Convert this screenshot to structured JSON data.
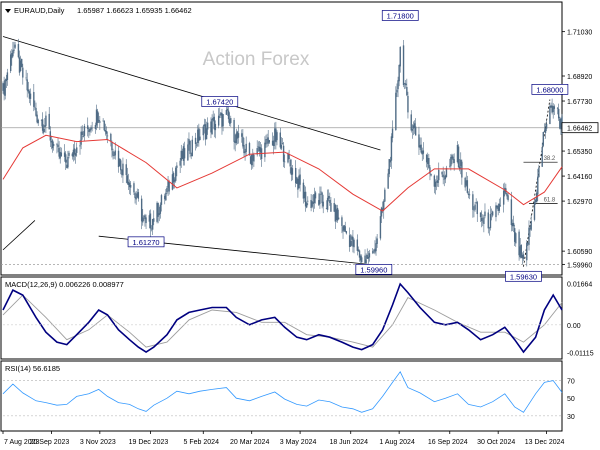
{
  "header": {
    "symbol": "EURAUD,Daily",
    "ohlc": "1.65987 1.66623 1.65935 1.66462"
  },
  "watermark": "Action Forex",
  "colors": {
    "candle": "#4f6b85",
    "ma": "#e53935",
    "macd_line": "#000080",
    "macd_signal": "#9e9e9e",
    "rsi_line": "#3399ff",
    "trendline": "#000000",
    "fib": "#000000"
  },
  "chart_data": [
    {
      "type": "candlestick",
      "pane": "price",
      "ylim": [
        1.5955,
        1.7225
      ],
      "y_ticks": [
        "1.71030",
        "1.68920",
        "1.67730",
        "1.65350",
        "1.64160",
        "1.62970",
        "1.60590",
        "1.59960"
      ],
      "current_price_label": "1.66462",
      "x_range": [
        "2023-08-07",
        "2024-12-27"
      ],
      "x_ticks": [
        "7 Aug 2023",
        "20 Sep 2023",
        "3 Nov 2023",
        "19 Dec 2023",
        "5 Feb 2024",
        "20 Mar 2024",
        "3 May 2024",
        "18 Jun 2024",
        "1 Aug 2024",
        "16 Sep 2024",
        "30 Oct 2024",
        "13 Dec 2024"
      ],
      "close_path": [
        [
          "2023-08-07",
          1.682
        ],
        [
          "2023-08-16",
          1.703
        ],
        [
          "2023-08-25",
          1.689
        ],
        [
          "2023-09-06",
          1.671
        ],
        [
          "2023-09-15",
          1.666
        ],
        [
          "2023-09-25",
          1.652
        ],
        [
          "2023-10-04",
          1.648
        ],
        [
          "2023-10-13",
          1.657
        ],
        [
          "2023-10-24",
          1.665
        ],
        [
          "2023-11-02",
          1.672
        ],
        [
          "2023-11-10",
          1.662
        ],
        [
          "2023-11-20",
          1.649
        ],
        [
          "2023-11-30",
          1.64
        ],
        [
          "2023-12-08",
          1.628
        ],
        [
          "2023-12-15",
          1.617
        ],
        [
          "2023-12-22",
          1.622
        ],
        [
          "2024-01-03",
          1.634
        ],
        [
          "2024-01-12",
          1.647
        ],
        [
          "2024-01-23",
          1.655
        ],
        [
          "2024-02-02",
          1.661
        ],
        [
          "2024-02-13",
          1.666
        ],
        [
          "2024-02-26",
          1.67
        ],
        [
          "2024-03-06",
          1.66
        ],
        [
          "2024-03-18",
          1.651
        ],
        [
          "2024-03-29",
          1.654
        ],
        [
          "2024-04-10",
          1.66
        ],
        [
          "2024-04-19",
          1.652
        ],
        [
          "2024-04-30",
          1.64
        ],
        [
          "2024-05-09",
          1.629
        ],
        [
          "2024-05-20",
          1.63
        ],
        [
          "2024-05-30",
          1.628
        ],
        [
          "2024-06-10",
          1.618
        ],
        [
          "2024-06-20",
          1.609
        ],
        [
          "2024-06-28",
          1.602
        ],
        [
          "2024-07-08",
          1.604
        ],
        [
          "2024-07-17",
          1.625
        ],
        [
          "2024-07-26",
          1.66
        ],
        [
          "2024-08-02",
          1.702
        ],
        [
          "2024-08-09",
          1.672
        ],
        [
          "2024-08-20",
          1.656
        ],
        [
          "2024-09-02",
          1.64
        ],
        [
          "2024-09-12",
          1.643
        ],
        [
          "2024-09-23",
          1.652
        ],
        [
          "2024-10-03",
          1.632
        ],
        [
          "2024-10-14",
          1.621
        ],
        [
          "2024-10-25",
          1.62
        ],
        [
          "2024-11-05",
          1.634
        ],
        [
          "2024-11-14",
          1.612
        ],
        [
          "2024-11-22",
          1.599
        ],
        [
          "2024-12-03",
          1.632
        ],
        [
          "2024-12-11",
          1.664
        ],
        [
          "2024-12-19",
          1.676
        ],
        [
          "2024-12-27",
          1.665
        ]
      ],
      "ma_path": [
        [
          "2023-08-07",
          1.64
        ],
        [
          "2023-08-25",
          1.655
        ],
        [
          "2023-09-15",
          1.661
        ],
        [
          "2023-10-13",
          1.658
        ],
        [
          "2023-11-10",
          1.659
        ],
        [
          "2023-12-15",
          1.648
        ],
        [
          "2024-01-12",
          1.636
        ],
        [
          "2024-02-13",
          1.643
        ],
        [
          "2024-03-18",
          1.652
        ],
        [
          "2024-04-19",
          1.653
        ],
        [
          "2024-05-20",
          1.645
        ],
        [
          "2024-06-20",
          1.633
        ],
        [
          "2024-07-17",
          1.625
        ],
        [
          "2024-08-09",
          1.636
        ],
        [
          "2024-09-02",
          1.645
        ],
        [
          "2024-10-03",
          1.645
        ],
        [
          "2024-11-05",
          1.635
        ],
        [
          "2024-11-22",
          1.628
        ],
        [
          "2024-12-11",
          1.634
        ],
        [
          "2024-12-27",
          1.646
        ]
      ],
      "trendlines": [
        {
          "from": [
            "2023-08-07",
            1.708
          ],
          "to": [
            "2024-07-15",
            1.654
          ]
        },
        {
          "from": [
            "2023-11-02",
            1.613
          ],
          "to": [
            "2024-07-15",
            1.599
          ]
        },
        {
          "from": [
            "2023-08-07",
            1.6065
          ],
          "to": [
            "2023-09-05",
            1.6205
          ]
        },
        {
          "from": [
            "2024-11-22",
            1.5985
          ],
          "to": [
            "2024-12-16",
            1.678
          ]
        }
      ],
      "horizontal_lines": [
        {
          "y": 1.6646,
          "style": "solid"
        },
        {
          "y": 1.5996,
          "style": "dashed"
        }
      ],
      "fib_levels": [
        {
          "label": "38.2",
          "y": 1.6482,
          "from": "2024-11-22",
          "to": "2024-12-23"
        },
        {
          "label": "61.8",
          "y": 1.6285,
          "from": "2024-11-27",
          "to": "2024-12-23"
        }
      ],
      "annotations": [
        {
          "text": "1.71800",
          "x": "2024-08-02",
          "y": 1.718
        },
        {
          "text": "1.67420",
          "x": "2024-02-20",
          "y": 1.6742
        },
        {
          "text": "1.61270",
          "x": "2023-12-15",
          "y": 1.6127
        },
        {
          "text": "1.59960",
          "x": "2024-07-09",
          "y": 1.5996
        },
        {
          "text": "1.59630",
          "x": "2024-11-22",
          "y": 1.5963
        },
        {
          "text": "1.68000",
          "x": "2024-12-16",
          "y": 1.68
        }
      ]
    },
    {
      "type": "line",
      "pane": "macd",
      "title": "MACD(12,26,9) 0.006226 0.008977",
      "ylim": [
        -0.013,
        0.0185
      ],
      "y_ticks": [
        "0.01664",
        "0.00",
        "-0.01115"
      ],
      "series": [
        {
          "name": "MACD",
          "values": [
            [
              "2023-08-07",
              0.006
            ],
            [
              "2023-08-16",
              0.014
            ],
            [
              "2023-08-25",
              0.012
            ],
            [
              "2023-09-06",
              0.003
            ],
            [
              "2023-09-15",
              -0.003
            ],
            [
              "2023-09-25",
              -0.007
            ],
            [
              "2023-10-04",
              -0.008
            ],
            [
              "2023-10-13",
              -0.004
            ],
            [
              "2023-10-24",
              0.001
            ],
            [
              "2023-11-02",
              0.006
            ],
            [
              "2023-11-10",
              0.004
            ],
            [
              "2023-11-20",
              -0.002
            ],
            [
              "2023-11-30",
              -0.006
            ],
            [
              "2023-12-08",
              -0.009
            ],
            [
              "2023-12-15",
              -0.011
            ],
            [
              "2023-12-22",
              -0.009
            ],
            [
              "2024-01-03",
              -0.004
            ],
            [
              "2024-01-12",
              0.002
            ],
            [
              "2024-01-23",
              0.005
            ],
            [
              "2024-02-02",
              0.006
            ],
            [
              "2024-02-13",
              0.007
            ],
            [
              "2024-02-26",
              0.007
            ],
            [
              "2024-03-06",
              0.003
            ],
            [
              "2024-03-18",
              0.0
            ],
            [
              "2024-03-29",
              0.002
            ],
            [
              "2024-04-10",
              0.003
            ],
            [
              "2024-04-19",
              -0.001
            ],
            [
              "2024-04-30",
              -0.005
            ],
            [
              "2024-05-09",
              -0.006
            ],
            [
              "2024-05-20",
              -0.004
            ],
            [
              "2024-05-30",
              -0.005
            ],
            [
              "2024-06-10",
              -0.007
            ],
            [
              "2024-06-20",
              -0.009
            ],
            [
              "2024-06-28",
              -0.01
            ],
            [
              "2024-07-08",
              -0.008
            ],
            [
              "2024-07-17",
              -0.002
            ],
            [
              "2024-07-26",
              0.008
            ],
            [
              "2024-08-02",
              0.0165
            ],
            [
              "2024-08-09",
              0.013
            ],
            [
              "2024-08-20",
              0.007
            ],
            [
              "2024-09-02",
              0.001
            ],
            [
              "2024-09-12",
              0.0
            ],
            [
              "2024-09-23",
              0.001
            ],
            [
              "2024-10-03",
              -0.002
            ],
            [
              "2024-10-14",
              -0.006
            ],
            [
              "2024-10-25",
              -0.004
            ],
            [
              "2024-11-05",
              -0.001
            ],
            [
              "2024-11-14",
              -0.006
            ],
            [
              "2024-11-22",
              -0.011
            ],
            [
              "2024-12-03",
              -0.005
            ],
            [
              "2024-12-11",
              0.006
            ],
            [
              "2024-12-19",
              0.012
            ],
            [
              "2024-12-27",
              0.006
            ]
          ]
        },
        {
          "name": "Signal",
          "values": [
            [
              "2023-08-07",
              0.004
            ],
            [
              "2023-08-25",
              0.012
            ],
            [
              "2023-09-15",
              0.003
            ],
            [
              "2023-10-04",
              -0.006
            ],
            [
              "2023-10-24",
              -0.002
            ],
            [
              "2023-11-10",
              0.004
            ],
            [
              "2023-11-30",
              -0.003
            ],
            [
              "2023-12-15",
              -0.009
            ],
            [
              "2024-01-03",
              -0.007
            ],
            [
              "2024-01-23",
              0.002
            ],
            [
              "2024-02-13",
              0.006
            ],
            [
              "2024-03-06",
              0.005
            ],
            [
              "2024-03-29",
              0.001
            ],
            [
              "2024-04-19",
              0.001
            ],
            [
              "2024-05-09",
              -0.004
            ],
            [
              "2024-05-30",
              -0.005
            ],
            [
              "2024-06-20",
              -0.007
            ],
            [
              "2024-07-08",
              -0.009
            ],
            [
              "2024-07-26",
              0.0
            ],
            [
              "2024-08-09",
              0.011
            ],
            [
              "2024-09-02",
              0.006
            ],
            [
              "2024-09-23",
              0.001
            ],
            [
              "2024-10-14",
              -0.003
            ],
            [
              "2024-11-05",
              -0.003
            ],
            [
              "2024-11-22",
              -0.007
            ],
            [
              "2024-12-11",
              0.0
            ],
            [
              "2024-12-27",
              0.009
            ]
          ]
        }
      ]
    },
    {
      "type": "line",
      "pane": "rsi",
      "title": "RSI(14) 56.6185",
      "ylim": [
        15,
        90
      ],
      "y_ticks": [
        "70",
        "50",
        "30"
      ],
      "series": [
        {
          "name": "RSI",
          "values": [
            [
              "2023-08-07",
              55
            ],
            [
              "2023-08-16",
              66
            ],
            [
              "2023-08-25",
              56
            ],
            [
              "2023-09-06",
              47
            ],
            [
              "2023-09-15",
              45
            ],
            [
              "2023-09-25",
              42
            ],
            [
              "2023-10-04",
              43
            ],
            [
              "2023-10-13",
              52
            ],
            [
              "2023-10-24",
              55
            ],
            [
              "2023-11-02",
              60
            ],
            [
              "2023-11-10",
              52
            ],
            [
              "2023-11-20",
              45
            ],
            [
              "2023-11-30",
              43
            ],
            [
              "2023-12-08",
              38
            ],
            [
              "2023-12-15",
              35
            ],
            [
              "2023-12-22",
              42
            ],
            [
              "2024-01-03",
              50
            ],
            [
              "2024-01-12",
              58
            ],
            [
              "2024-01-23",
              55
            ],
            [
              "2024-02-02",
              58
            ],
            [
              "2024-02-13",
              60
            ],
            [
              "2024-02-26",
              62
            ],
            [
              "2024-03-06",
              50
            ],
            [
              "2024-03-18",
              47
            ],
            [
              "2024-03-29",
              52
            ],
            [
              "2024-04-10",
              57
            ],
            [
              "2024-04-19",
              49
            ],
            [
              "2024-04-30",
              43
            ],
            [
              "2024-05-09",
              41
            ],
            [
              "2024-05-20",
              48
            ],
            [
              "2024-05-30",
              46
            ],
            [
              "2024-06-10",
              40
            ],
            [
              "2024-06-20",
              38
            ],
            [
              "2024-06-28",
              34
            ],
            [
              "2024-07-08",
              38
            ],
            [
              "2024-07-17",
              52
            ],
            [
              "2024-07-26",
              68
            ],
            [
              "2024-08-02",
              80
            ],
            [
              "2024-08-09",
              62
            ],
            [
              "2024-08-20",
              56
            ],
            [
              "2024-09-02",
              46
            ],
            [
              "2024-09-12",
              50
            ],
            [
              "2024-09-23",
              55
            ],
            [
              "2024-10-03",
              43
            ],
            [
              "2024-10-14",
              40
            ],
            [
              "2024-10-25",
              46
            ],
            [
              "2024-11-05",
              55
            ],
            [
              "2024-11-14",
              40
            ],
            [
              "2024-11-22",
              34
            ],
            [
              "2024-12-03",
              55
            ],
            [
              "2024-12-11",
              68
            ],
            [
              "2024-12-19",
              70
            ],
            [
              "2024-12-27",
              56.6
            ]
          ]
        }
      ]
    }
  ]
}
